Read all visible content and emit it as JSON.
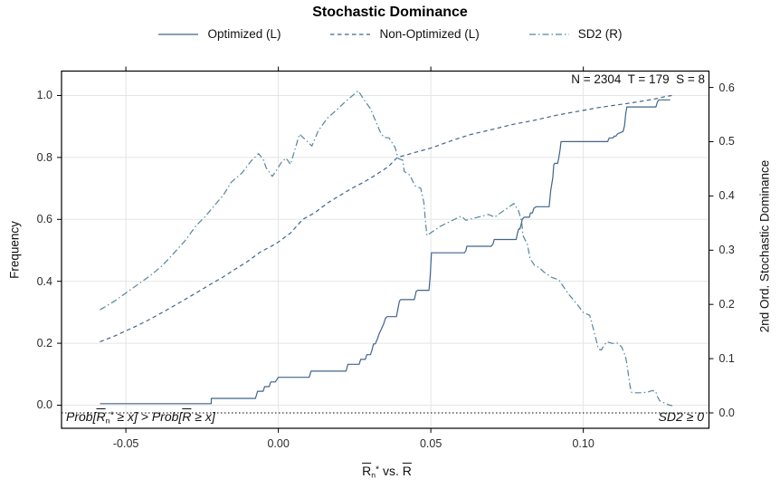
{
  "title": "Stochastic Dominance",
  "legend": {
    "items": [
      {
        "label": "Optimized (L)",
        "style": "solid"
      },
      {
        "label": "Non-Optimized (L)",
        "style": "dashed"
      },
      {
        "label": "SD2 (R)",
        "style": "dashdot"
      }
    ]
  },
  "annotations": {
    "top_right": "N = 2304  T = 179  S = 8",
    "bottom_left_parts": {
      "p1": "Prob[",
      "r1": "R",
      "sub1": "n",
      "sup1": "*",
      "m1": " ≥ x] > Prob[",
      "r2": "R",
      "m2": " ≥ x]"
    },
    "bottom_right": "SD2 ≥ 0"
  },
  "axes": {
    "x": {
      "label_text": "R̄n* vs. R̄",
      "label_parts": {
        "r1": "R",
        "sub1": "n",
        "sup1": "*",
        "mid": " vs. ",
        "r2": "R"
      },
      "tick_labels": [
        "-0.05",
        "0.00",
        "0.05",
        "0.10"
      ],
      "tick_values": [
        -0.05,
        0,
        0.05,
        0.1
      ]
    },
    "left": {
      "label": "Frequency",
      "tick_labels": [
        "0.0",
        "0.2",
        "0.4",
        "0.6",
        "0.8",
        "1.0"
      ],
      "tick_values": [
        0,
        0.2,
        0.4,
        0.6,
        0.8,
        1
      ]
    },
    "right": {
      "label": "2nd Ord. Stochastic Dominance",
      "tick_labels": [
        "0.0",
        "0.1",
        "0.2",
        "0.3",
        "0.4",
        "0.5",
        "0.6"
      ],
      "tick_values": [
        0,
        0.1,
        0.2,
        0.3,
        0.4,
        0.5,
        0.6
      ]
    }
  },
  "colors": {
    "primary": "#40648a",
    "sd2": "#54879a",
    "grid": "#e5e5e5",
    "frame": "#000000",
    "zero_line": "#000000",
    "text": "#111111"
  },
  "chart_data": {
    "type": "line",
    "title": "Stochastic Dominance",
    "xlabel": "R̄n* vs. R̄",
    "ylabel_left": "Frequency",
    "ylabel_right": "2nd Ord. Stochastic Dominance",
    "xlim": [
      -0.0711,
      0.1412
    ],
    "ylim_left": [
      -0.0746,
      1.0789
    ],
    "ylim_right": [
      -0.0284,
      0.6302
    ],
    "grid": true,
    "legend_position": "top",
    "zero_line_right_axis": 0,
    "annotation_top_right": {
      "N": 2304,
      "T": 179,
      "S": 8
    },
    "series": [
      {
        "name": "Optimized (L)",
        "axis": "left",
        "style": "solid",
        "points": [
          [
            -0.0585,
            0.005
          ],
          [
            -0.022,
            0.005
          ],
          [
            -0.022,
            0.022
          ],
          [
            -0.0075,
            0.022
          ],
          [
            -0.0068,
            0.045
          ],
          [
            -0.005,
            0.045
          ],
          [
            -0.0045,
            0.06
          ],
          [
            -0.003,
            0.06
          ],
          [
            -0.0025,
            0.075
          ],
          [
            -0.001,
            0.075
          ],
          [
            0,
            0.09
          ],
          [
            0.0101,
            0.09
          ],
          [
            0.0107,
            0.11
          ],
          [
            0.0222,
            0.11
          ],
          [
            0.0228,
            0.132
          ],
          [
            0.0265,
            0.132
          ],
          [
            0.027,
            0.148
          ],
          [
            0.0285,
            0.148
          ],
          [
            0.029,
            0.163
          ],
          [
            0.0302,
            0.163
          ],
          [
            0.0307,
            0.178
          ],
          [
            0.0312,
            0.198
          ],
          [
            0.0318,
            0.198
          ],
          [
            0.0325,
            0.215
          ],
          [
            0.0331,
            0.232
          ],
          [
            0.0338,
            0.246
          ],
          [
            0.0345,
            0.262
          ],
          [
            0.0351,
            0.28
          ],
          [
            0.0357,
            0.286
          ],
          [
            0.0387,
            0.286
          ],
          [
            0.0392,
            0.31
          ],
          [
            0.0397,
            0.336
          ],
          [
            0.0401,
            0.341
          ],
          [
            0.0446,
            0.341
          ],
          [
            0.0452,
            0.368
          ],
          [
            0.0457,
            0.371
          ],
          [
            0.0494,
            0.371
          ],
          [
            0.0498,
            0.42
          ],
          [
            0.0502,
            0.492
          ],
          [
            0.061,
            0.492
          ],
          [
            0.0615,
            0.499
          ],
          [
            0.0618,
            0.513
          ],
          [
            0.0698,
            0.513
          ],
          [
            0.0704,
            0.521
          ],
          [
            0.0708,
            0.535
          ],
          [
            0.078,
            0.535
          ],
          [
            0.0784,
            0.555
          ],
          [
            0.0788,
            0.569
          ],
          [
            0.0792,
            0.569
          ],
          [
            0.0796,
            0.583
          ],
          [
            0.08,
            0.601
          ],
          [
            0.0806,
            0.607
          ],
          [
            0.0823,
            0.607
          ],
          [
            0.0827,
            0.621
          ],
          [
            0.0833,
            0.621
          ],
          [
            0.0838,
            0.636
          ],
          [
            0.0846,
            0.641
          ],
          [
            0.0888,
            0.641
          ],
          [
            0.0893,
            0.693
          ],
          [
            0.09,
            0.734
          ],
          [
            0.0903,
            0.776
          ],
          [
            0.0906,
            0.781
          ],
          [
            0.0916,
            0.781
          ],
          [
            0.092,
            0.801
          ],
          [
            0.0924,
            0.826
          ],
          [
            0.0927,
            0.851
          ],
          [
            0.108,
            0.851
          ],
          [
            0.1085,
            0.863
          ],
          [
            0.1097,
            0.863
          ],
          [
            0.1102,
            0.869
          ],
          [
            0.1107,
            0.869
          ],
          [
            0.1112,
            0.876
          ],
          [
            0.1118,
            0.879
          ],
          [
            0.1124,
            0.881
          ],
          [
            0.113,
            0.884
          ],
          [
            0.1135,
            0.901
          ],
          [
            0.1139,
            0.941
          ],
          [
            0.1143,
            0.963
          ],
          [
            0.1238,
            0.963
          ],
          [
            0.1243,
            0.979
          ],
          [
            0.1247,
            0.986
          ],
          [
            0.1285,
            0.986
          ]
        ]
      },
      {
        "name": "Non-Optimized (L)",
        "axis": "left",
        "style": "dashed",
        "points": [
          [
            -0.0585,
            0.205
          ],
          [
            -0.054,
            0.222
          ],
          [
            -0.05,
            0.24
          ],
          [
            -0.046,
            0.258
          ],
          [
            -0.042,
            0.278
          ],
          [
            -0.038,
            0.3
          ],
          [
            -0.034,
            0.322
          ],
          [
            -0.03,
            0.345
          ],
          [
            -0.026,
            0.368
          ],
          [
            -0.022,
            0.392
          ],
          [
            -0.018,
            0.415
          ],
          [
            -0.014,
            0.44
          ],
          [
            -0.01,
            0.465
          ],
          [
            -0.006,
            0.494
          ],
          [
            -0.002,
            0.515
          ],
          [
            0,
            0.527
          ],
          [
            0.004,
            0.556
          ],
          [
            0.008,
            0.6
          ],
          [
            0.012,
            0.622
          ],
          [
            0.016,
            0.652
          ],
          [
            0.02,
            0.676
          ],
          [
            0.024,
            0.7
          ],
          [
            0.028,
            0.72
          ],
          [
            0.032,
            0.744
          ],
          [
            0.036,
            0.77
          ],
          [
            0.039,
            0.8
          ],
          [
            0.044,
            0.814
          ],
          [
            0.05,
            0.83
          ],
          [
            0.057,
            0.855
          ],
          [
            0.063,
            0.874
          ],
          [
            0.07,
            0.89
          ],
          [
            0.077,
            0.907
          ],
          [
            0.084,
            0.92
          ],
          [
            0.092,
            0.938
          ],
          [
            0.1,
            0.952
          ],
          [
            0.105,
            0.961
          ],
          [
            0.11,
            0.968
          ],
          [
            0.115,
            0.975
          ],
          [
            0.12,
            0.983
          ],
          [
            0.124,
            0.99
          ],
          [
            0.127,
            0.997
          ],
          [
            0.129,
            1
          ]
        ]
      },
      {
        "name": "SD2 (R)",
        "axis": "right",
        "style": "dashdot",
        "points": [
          [
            -0.0585,
            0.19
          ],
          [
            -0.054,
            0.205
          ],
          [
            -0.05,
            0.221
          ],
          [
            -0.046,
            0.237
          ],
          [
            -0.042,
            0.253
          ],
          [
            -0.038,
            0.272
          ],
          [
            -0.034,
            0.296
          ],
          [
            -0.0305,
            0.318
          ],
          [
            -0.027,
            0.345
          ],
          [
            -0.024,
            0.362
          ],
          [
            -0.021,
            0.382
          ],
          [
            -0.018,
            0.402
          ],
          [
            -0.0155,
            0.425
          ],
          [
            -0.012,
            0.442
          ],
          [
            -0.009,
            0.464
          ],
          [
            -0.0065,
            0.478
          ],
          [
            -0.005,
            0.468
          ],
          [
            -0.004,
            0.452
          ],
          [
            -0.002,
            0.436
          ],
          [
            -0.0005,
            0.448
          ],
          [
            0.001,
            0.462
          ],
          [
            0.0025,
            0.47
          ],
          [
            0.004,
            0.458
          ],
          [
            0.0055,
            0.487
          ],
          [
            0.0069,
            0.514
          ],
          [
            0.009,
            0.503
          ],
          [
            0.011,
            0.492
          ],
          [
            0.013,
            0.519
          ],
          [
            0.016,
            0.543
          ],
          [
            0.019,
            0.558
          ],
          [
            0.022,
            0.574
          ],
          [
            0.0262,
            0.594
          ],
          [
            0.028,
            0.578
          ],
          [
            0.0302,
            0.561
          ],
          [
            0.0333,
            0.519
          ],
          [
            0.0345,
            0.508
          ],
          [
            0.0363,
            0.507
          ],
          [
            0.0383,
            0.489
          ],
          [
            0.0393,
            0.469
          ],
          [
            0.0408,
            0.466
          ],
          [
            0.0413,
            0.445
          ],
          [
            0.0432,
            0.438
          ],
          [
            0.0447,
            0.419
          ],
          [
            0.0467,
            0.414
          ],
          [
            0.0477,
            0.388
          ],
          [
            0.0482,
            0.355
          ],
          [
            0.0487,
            0.327
          ],
          [
            0.0531,
            0.344
          ],
          [
            0.06,
            0.363
          ],
          [
            0.0615,
            0.355
          ],
          [
            0.0689,
            0.366
          ],
          [
            0.0709,
            0.361
          ],
          [
            0.0749,
            0.377
          ],
          [
            0.0773,
            0.386
          ],
          [
            0.0788,
            0.372
          ],
          [
            0.0798,
            0.352
          ],
          [
            0.0802,
            0.327
          ],
          [
            0.0817,
            0.31
          ],
          [
            0.0825,
            0.285
          ],
          [
            0.084,
            0.272
          ],
          [
            0.0855,
            0.268
          ],
          [
            0.087,
            0.26
          ],
          [
            0.0895,
            0.25
          ],
          [
            0.092,
            0.245
          ],
          [
            0.095,
            0.22
          ],
          [
            0.098,
            0.2
          ],
          [
            0.1,
            0.185
          ],
          [
            0.1021,
            0.18
          ],
          [
            0.104,
            0.14
          ],
          [
            0.1049,
            0.118
          ],
          [
            0.1059,
            0.116
          ],
          [
            0.107,
            0.126
          ],
          [
            0.1078,
            0.131
          ],
          [
            0.1095,
            0.128
          ],
          [
            0.111,
            0.129
          ],
          [
            0.1125,
            0.122
          ],
          [
            0.1138,
            0.105
          ],
          [
            0.1143,
            0.09
          ],
          [
            0.1148,
            0.07
          ],
          [
            0.1153,
            0.05
          ],
          [
            0.1158,
            0.038
          ],
          [
            0.117,
            0.037
          ],
          [
            0.119,
            0.037
          ],
          [
            0.121,
            0.038
          ],
          [
            0.1225,
            0.041
          ],
          [
            0.1237,
            0.04
          ],
          [
            0.1243,
            0.03
          ],
          [
            0.1251,
            0.022
          ],
          [
            0.126,
            0.02
          ],
          [
            0.127,
            0.017
          ],
          [
            0.128,
            0.015
          ],
          [
            0.1292,
            0.013
          ]
        ]
      }
    ]
  }
}
